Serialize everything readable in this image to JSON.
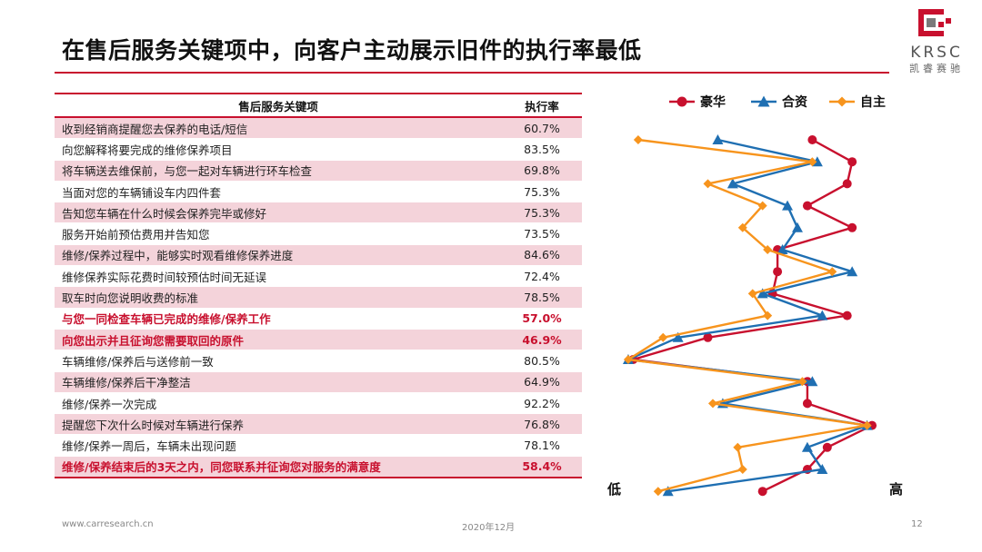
{
  "title": "在售后服务关键项中，向客户主动展示旧件的执行率最低",
  "logo": {
    "text": "KRSC",
    "sub": "凯睿赛驰",
    "colors": {
      "red": "#c8102e",
      "gray": "#7a7a7a"
    }
  },
  "table": {
    "headers": {
      "item": "售后服务关键项",
      "rate": "执行率"
    },
    "rows": [
      {
        "item": "收到经销商提醒您去保养的电话/短信",
        "rate": "60.7%",
        "highlight": false
      },
      {
        "item": "向您解释将要完成的维修保养项目",
        "rate": "83.5%",
        "highlight": false
      },
      {
        "item": "将车辆送去维保前，与您一起对车辆进行环车检查",
        "rate": "69.8%",
        "highlight": false
      },
      {
        "item": "当面对您的车辆铺设车内四件套",
        "rate": "75.3%",
        "highlight": false
      },
      {
        "item": "告知您车辆在什么时候会保养完毕或修好",
        "rate": "75.3%",
        "highlight": false
      },
      {
        "item": "服务开始前预估费用并告知您",
        "rate": "73.5%",
        "highlight": false
      },
      {
        "item": "维修/保养过程中，能够实时观看维修保养进度",
        "rate": "84.6%",
        "highlight": false
      },
      {
        "item": "维修保养实际花费时间较预估时间无延误",
        "rate": "72.4%",
        "highlight": false
      },
      {
        "item": "取车时向您说明收费的标准",
        "rate": "78.5%",
        "highlight": false
      },
      {
        "item": "与您一同检查车辆已完成的维修/保养工作",
        "rate": "57.0%",
        "highlight": true
      },
      {
        "item": "向您出示并且征询您需要取回的原件",
        "rate": "46.9%",
        "highlight": true
      },
      {
        "item": "车辆维修/保养后与送修前一致",
        "rate": "80.5%",
        "highlight": false
      },
      {
        "item": "车辆维修/保养后干净整洁",
        "rate": "64.9%",
        "highlight": false
      },
      {
        "item": "维修/保养一次完成",
        "rate": "92.2%",
        "highlight": false
      },
      {
        "item": "提醒您下次什么时候对车辆进行保养",
        "rate": "76.8%",
        "highlight": false
      },
      {
        "item": "维修/保养一周后，车辆未出现问题",
        "rate": "78.1%",
        "highlight": false
      },
      {
        "item": "维修/保养结束后的3天之内，同您联系并征询您对服务的满意度",
        "rate": "58.4%",
        "highlight": true
      }
    ]
  },
  "chart_data": {
    "type": "line",
    "orientation": "horizontal-value-axis",
    "title": "",
    "axis": {
      "low_label": "低",
      "high_label": "高",
      "min": 44,
      "max": 97
    },
    "legend_position": "top",
    "series": [
      {
        "name": "豪华",
        "color": "#c8102e",
        "marker": "circle",
        "values": [
          83,
          91,
          90,
          82,
          91,
          76,
          76,
          75,
          90,
          62,
          47,
          82,
          82,
          95,
          86,
          82,
          73
        ]
      },
      {
        "name": "合资",
        "color": "#1f6fb2",
        "marker": "triangle",
        "values": [
          64,
          84,
          67,
          78,
          80,
          77,
          91,
          73,
          85,
          56,
          46,
          83,
          65,
          94,
          82,
          85,
          54
        ]
      },
      {
        "name": "自主",
        "color": "#f7941d",
        "marker": "diamond",
        "values": [
          48,
          83,
          62,
          73,
          69,
          74,
          87,
          71,
          74,
          53,
          46,
          81,
          63,
          94,
          68,
          69,
          52
        ]
      }
    ]
  },
  "footer": {
    "website": "www.carresearch.cn",
    "date": "2020年12月",
    "page": "12"
  }
}
